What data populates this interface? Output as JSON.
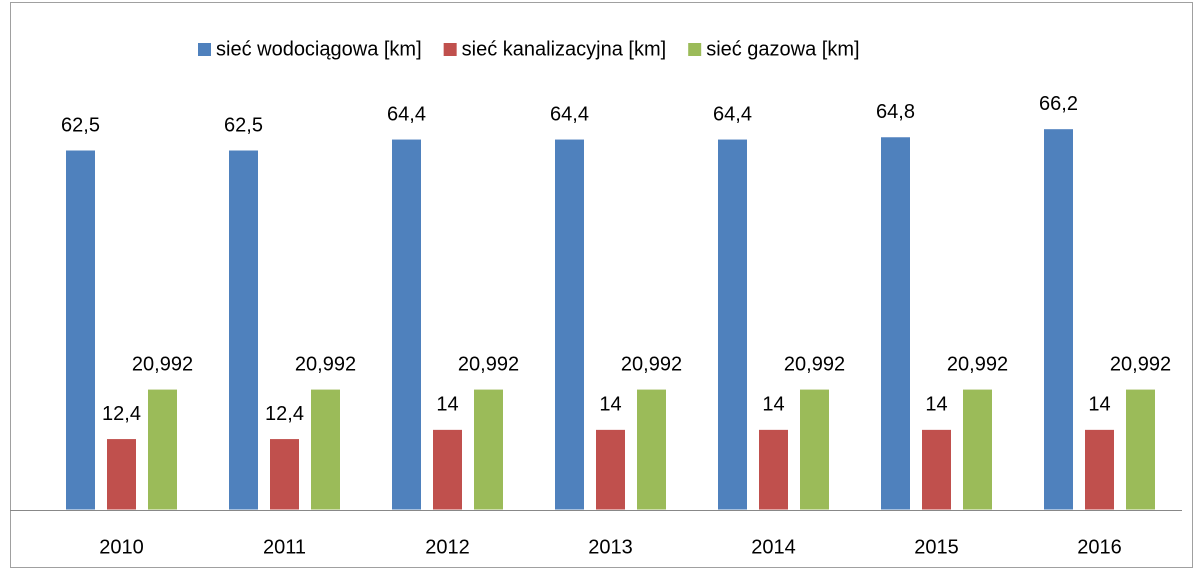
{
  "chart_data": {
    "type": "bar",
    "categories": [
      "2010",
      "2011",
      "2012",
      "2013",
      "2014",
      "2015",
      "2016"
    ],
    "series": [
      {
        "name": "sieć wodociągowa [km]",
        "color": "#4f81bd",
        "values": [
          62.5,
          62.5,
          64.4,
          64.4,
          64.4,
          64.8,
          66.2
        ],
        "value_labels": [
          "62,5",
          "62,5",
          "64,4",
          "64,4",
          "64,4",
          "64,8",
          "66,2"
        ]
      },
      {
        "name": "sieć kanalizacyjna [km]",
        "color": "#c0504d",
        "values": [
          12.4,
          12.4,
          14,
          14,
          14,
          14,
          14
        ],
        "value_labels": [
          "12,4",
          "12,4",
          "14",
          "14",
          "14",
          "14",
          "14"
        ]
      },
      {
        "name": "sieć gazowa [km]",
        "color": "#9bbb59",
        "values": [
          20.992,
          20.992,
          20.992,
          20.992,
          20.992,
          20.992,
          20.992
        ],
        "value_labels": [
          "20,992",
          "20,992",
          "20,992",
          "20,992",
          "20,992",
          "20,992",
          "20,992"
        ]
      }
    ],
    "legend": "top"
  }
}
